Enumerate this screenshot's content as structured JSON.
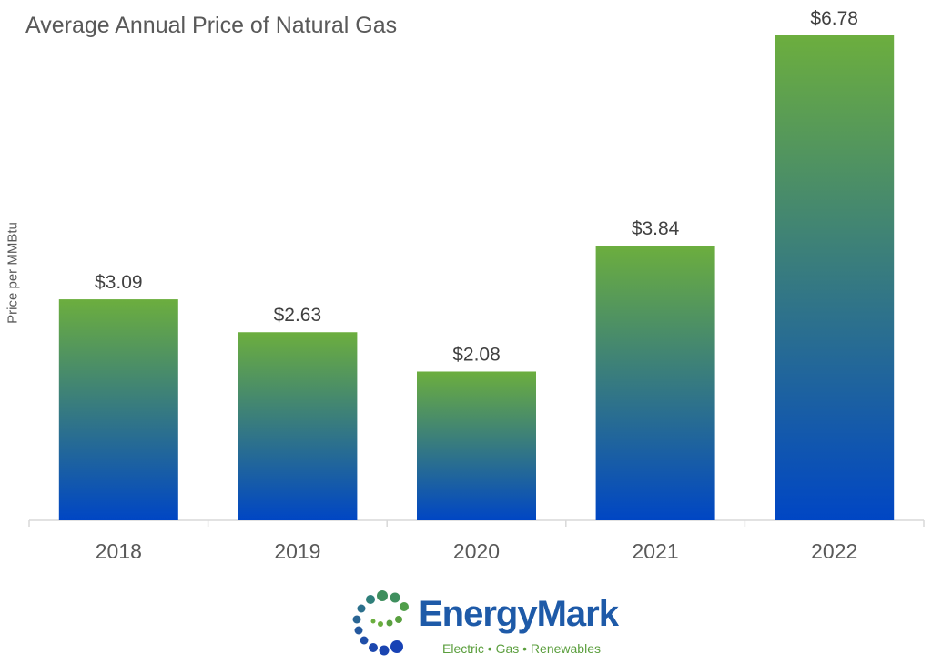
{
  "chart_data": {
    "type": "bar",
    "title": "Average Annual Price of Natural Gas",
    "ylabel": "Price per MMBtu",
    "xlabel": "",
    "categories": [
      "2018",
      "2019",
      "2020",
      "2021",
      "2022"
    ],
    "values": [
      3.09,
      2.63,
      2.08,
      3.84,
      6.78
    ],
    "data_labels": [
      "$3.09",
      "$2.63",
      "$2.08",
      "$3.84",
      "$6.78"
    ],
    "ylim": [
      0,
      6.78
    ],
    "grid": false,
    "colors": {
      "bar_top": "#6cae3e",
      "bar_bottom": "#0046c4"
    }
  },
  "logo": {
    "name": "EnergyMark",
    "tagline": "Electric • Gas • Renewables"
  }
}
